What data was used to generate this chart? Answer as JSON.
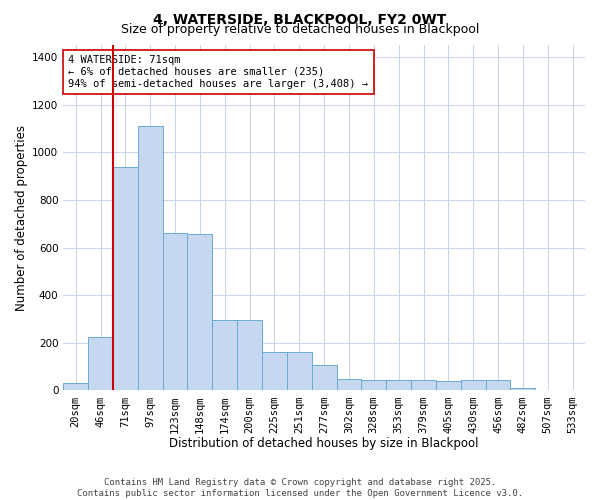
{
  "title": "4, WATERSIDE, BLACKPOOL, FY2 0WT",
  "subtitle": "Size of property relative to detached houses in Blackpool",
  "xlabel": "Distribution of detached houses by size in Blackpool",
  "ylabel": "Number of detached properties",
  "categories": [
    "20sqm",
    "46sqm",
    "71sqm",
    "97sqm",
    "123sqm",
    "148sqm",
    "174sqm",
    "200sqm",
    "225sqm",
    "251sqm",
    "277sqm",
    "302sqm",
    "328sqm",
    "353sqm",
    "379sqm",
    "405sqm",
    "430sqm",
    "456sqm",
    "482sqm",
    "507sqm",
    "533sqm"
  ],
  "values": [
    30,
    225,
    940,
    1110,
    660,
    655,
    295,
    295,
    160,
    160,
    105,
    50,
    45,
    45,
    45,
    40,
    45,
    45,
    10,
    0,
    0
  ],
  "bar_color": "#c5d8ef",
  "bar_edge_color": "#6aaad4",
  "vline_x_index": 2,
  "vline_color": "#cc0000",
  "annotation_text": "4 WATERSIDE: 71sqm\n← 6% of detached houses are smaller (235)\n94% of semi-detached houses are larger (3,408) →",
  "annotation_box_color": "#ffffff",
  "annotation_box_edge_color": "#cc0000",
  "background_color": "#ffffff",
  "grid_color": "#c8d4e8",
  "ylim": [
    0,
    1450
  ],
  "yticks": [
    0,
    200,
    400,
    600,
    800,
    1000,
    1200,
    1400
  ],
  "footer_line1": "Contains HM Land Registry data © Crown copyright and database right 2025.",
  "footer_line2": "Contains public sector information licensed under the Open Government Licence v3.0.",
  "title_fontsize": 10,
  "subtitle_fontsize": 9,
  "axis_label_fontsize": 8.5,
  "tick_fontsize": 7.5,
  "annotation_fontsize": 7.5,
  "footer_fontsize": 6.5
}
